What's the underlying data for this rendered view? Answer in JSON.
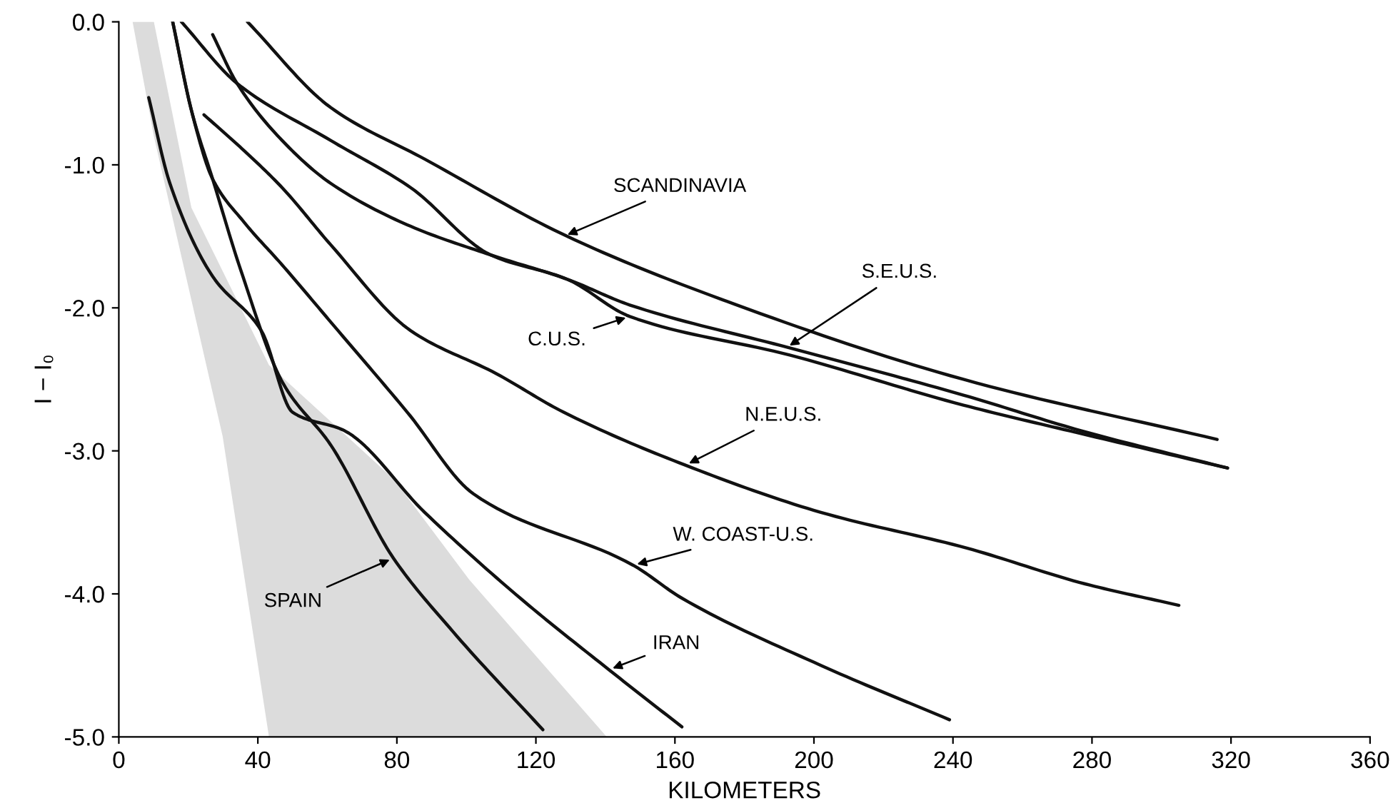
{
  "chart_data": {
    "type": "line",
    "xlabel": "KILOMETERS",
    "ylabel": "I − I₀",
    "xlim": [
      0,
      360
    ],
    "ylim": [
      -5,
      0
    ],
    "xticks": [
      0,
      40,
      80,
      120,
      160,
      200,
      240,
      280,
      320,
      360
    ],
    "yticks": [
      {
        "value": 0,
        "label": "0.0"
      },
      {
        "value": -1,
        "label": "-1.0"
      },
      {
        "value": -2,
        "label": "-2.0"
      },
      {
        "value": -3,
        "label": "-3.0"
      },
      {
        "value": -4,
        "label": "-4.0"
      },
      {
        "value": -5,
        "label": "-5.0"
      }
    ],
    "grid": false,
    "legend": false,
    "series": [
      {
        "color": "#111111",
        "x": [
          37,
          61,
          88,
          129,
          170,
          243,
          316
        ],
        "values": [
          0.0,
          -0.6,
          -0.96,
          -1.5,
          -1.91,
          -2.5,
          -2.92
        ]
      },
      {
        "color": "#111111",
        "x": [
          27,
          34,
          47,
          61,
          84,
          107,
          129,
          147,
          193,
          243,
          277,
          319
        ],
        "values": [
          -0.09,
          -0.43,
          -0.83,
          -1.13,
          -1.43,
          -1.63,
          -1.8,
          -1.98,
          -2.28,
          -2.61,
          -2.86,
          -3.12
        ]
      },
      {
        "color": "#111111",
        "x": [
          18,
          34,
          61,
          84,
          107,
          129,
          147,
          193,
          243,
          277,
          319
        ],
        "values": [
          0.0,
          -0.43,
          -0.83,
          -1.16,
          -1.63,
          -1.8,
          -2.06,
          -2.33,
          -2.68,
          -2.88,
          -3.12
        ]
      },
      {
        "color": "#111111",
        "x": [
          24.5,
          36,
          47,
          61,
          84,
          108.6,
          128,
          163,
          202,
          244,
          278,
          305
        ],
        "values": [
          -0.65,
          -0.9,
          -1.16,
          -1.56,
          -2.16,
          -2.46,
          -2.73,
          -3.1,
          -3.43,
          -3.68,
          -3.93,
          -4.08
        ]
      },
      {
        "color": "#111111",
        "x": [
          15.5,
          21,
          27,
          36,
          47,
          61,
          83,
          102,
          148,
          162,
          202,
          239
        ],
        "values": [
          0.0,
          -0.63,
          -1.1,
          -1.4,
          -1.7,
          -2.1,
          -2.73,
          -3.3,
          -3.8,
          -4.03,
          -4.5,
          -4.88
        ]
      },
      {
        "color": "#111111",
        "x": [
          8.6,
          14.7,
          27,
          41,
          50,
          65,
          88,
          115.5,
          141,
          162
        ],
        "values": [
          -0.53,
          -1.13,
          -1.78,
          -2.16,
          -2.73,
          -2.86,
          -3.43,
          -4.03,
          -4.53,
          -4.93
        ]
      },
      {
        "color": "#111111",
        "x": [
          15.5,
          21,
          27,
          35,
          47.3,
          61,
          79,
          96,
          122
        ],
        "values": [
          0.0,
          -0.63,
          -1.1,
          -1.73,
          -2.53,
          -2.96,
          -3.75,
          -4.26,
          -4.95
        ]
      }
    ],
    "annotations": [
      {
        "text": "SCANDINAVIA",
        "x": 128,
        "y": -1.5
      },
      {
        "text": "S.E.U.S.",
        "x": 192,
        "y": -2.28
      },
      {
        "text": "C.U.S.",
        "x": 147,
        "y": -2.06
      },
      {
        "text": "N.E.U.S.",
        "x": 163,
        "y": -3.1
      },
      {
        "text": "W. COAST-U.S.",
        "x": 148,
        "y": -3.8
      },
      {
        "text": "IRAN",
        "x": 141,
        "y": -4.53
      },
      {
        "text": "SPAIN",
        "x": 79,
        "y": -3.75
      }
    ]
  }
}
